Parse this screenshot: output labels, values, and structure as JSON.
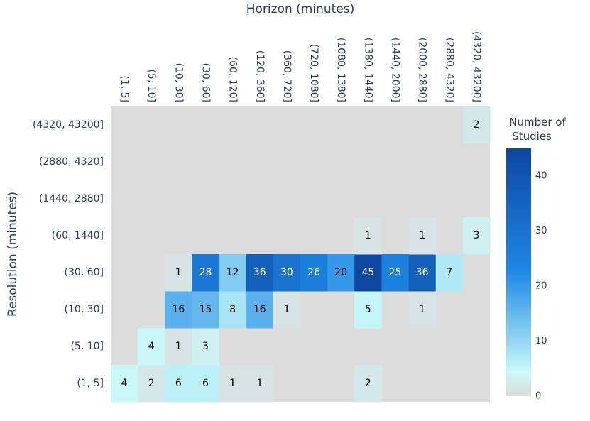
{
  "chart_data": {
    "type": "heatmap",
    "title": "",
    "xlabel": "Horizon (minutes)",
    "ylabel": "Resolution (minutes)",
    "x_categories": [
      "(1, 5]",
      "(5, 10]",
      "(10, 30]",
      "(30, 60]",
      "(60, 120]",
      "(120, 360]",
      "(360, 720]",
      "(720, 1080]",
      "(1080, 1380]",
      "(1380, 1440]",
      "(1440, 2000]",
      "(2000, 2880]",
      "(2880, 4320]",
      "(4320, 43200]"
    ],
    "y_categories": [
      "(1, 5]",
      "(5, 10]",
      "(10, 30]",
      "(30, 60]",
      "(60, 1440]",
      "(1440, 2880]",
      "(2880, 4320]",
      "(4320, 43200]"
    ],
    "z": [
      [
        4,
        2,
        6,
        6,
        1,
        1,
        null,
        null,
        null,
        2,
        null,
        null,
        null,
        null
      ],
      [
        null,
        4,
        1,
        3,
        null,
        null,
        null,
        null,
        null,
        null,
        null,
        null,
        null,
        null
      ],
      [
        null,
        null,
        16,
        15,
        8,
        16,
        1,
        null,
        null,
        5,
        null,
        1,
        null,
        null
      ],
      [
        null,
        null,
        1,
        28,
        12,
        36,
        30,
        26,
        20,
        45,
        25,
        36,
        7,
        null
      ],
      [
        null,
        null,
        null,
        null,
        null,
        null,
        null,
        null,
        null,
        1,
        null,
        1,
        null,
        3
      ],
      [
        null,
        null,
        null,
        null,
        null,
        null,
        null,
        null,
        null,
        null,
        null,
        null,
        null,
        null
      ],
      [
        null,
        null,
        null,
        null,
        null,
        null,
        null,
        null,
        null,
        null,
        null,
        null,
        null,
        null
      ],
      [
        null,
        null,
        null,
        null,
        null,
        null,
        null,
        null,
        null,
        null,
        null,
        null,
        null,
        2
      ]
    ],
    "zmin": 0,
    "zmax": 45,
    "colorbar": {
      "title_lines": [
        "Number of",
        "Studies"
      ],
      "ticks": [
        0,
        10,
        20,
        30,
        40
      ]
    },
    "colors": {
      "background": "#dcdcdc",
      "scale": [
        "#dcdcdc",
        "#c8fafa",
        "#1e88e5",
        "#0d47a1"
      ],
      "text": "#2a3f5f"
    },
    "x_axis_side": "top"
  }
}
